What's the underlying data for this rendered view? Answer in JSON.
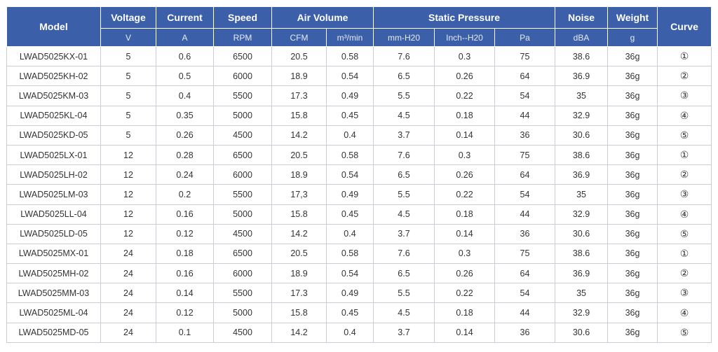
{
  "header": {
    "model": "Model",
    "voltage": "Voltage",
    "current": "Current",
    "speed": "Speed",
    "air_volume": "Air Volume",
    "static_pressure": "Static Pressure",
    "noise": "Noise",
    "weight": "Weight",
    "curve": "Curve",
    "units": [
      "V",
      "A",
      "RPM",
      "CFM",
      "m³/min",
      "mm-H20",
      "Inch--H20",
      "Pa",
      "dBA",
      "g"
    ]
  },
  "rows": [
    [
      "LWAD5025KX-01",
      "5",
      "0.6",
      "6500",
      "20.5",
      "0.58",
      "7.6",
      "0.3",
      "75",
      "38.6",
      "36g",
      "①"
    ],
    [
      "LWAD5025KH-02",
      "5",
      "0.5",
      "6000",
      "18.9",
      "0.54",
      "6.5",
      "0.26",
      "64",
      "36.9",
      "36g",
      "②"
    ],
    [
      "LWAD5025KM-03",
      "5",
      "0.4",
      "5500",
      "17.3",
      "0.49",
      "5.5",
      "0.22",
      "54",
      "35",
      "36g",
      "③"
    ],
    [
      "LWAD5025KL-04",
      "5",
      "0.35",
      "5000",
      "15.8",
      "0.45",
      "4.5",
      "0.18",
      "44",
      "32.9",
      "36g",
      "④"
    ],
    [
      "LWAD5025KD-05",
      "5",
      "0.26",
      "4500",
      "14.2",
      "0.4",
      "3.7",
      "0.14",
      "36",
      "30.6",
      "36g",
      "⑤"
    ],
    [
      "LWAD5025LX-01",
      "12",
      "0.28",
      "6500",
      "20.5",
      "0.58",
      "7.6",
      "0.3",
      "75",
      "38.6",
      "36g",
      "①"
    ],
    [
      "LWAD5025LH-02",
      "12",
      "0.24",
      "6000",
      "18.9",
      "0.54",
      "6.5",
      "0.26",
      "64",
      "36.9",
      "36g",
      "②"
    ],
    [
      "LWAD5025LM-03",
      "12",
      "0.2",
      "5500",
      "17,3",
      "0.49",
      "5.5",
      "0.22",
      "54",
      "35",
      "36g",
      "③"
    ],
    [
      "LWAD5025LL-04",
      "12",
      "0.16",
      "5000",
      "15.8",
      "0.45",
      "4.5",
      "0.18",
      "44",
      "32.9",
      "36g",
      "④"
    ],
    [
      "LWAD5025LD-05",
      "12",
      "0.12",
      "4500",
      "14.2",
      "0.4",
      "3.7",
      "0.14",
      "36",
      "30.6",
      "36g",
      "⑤"
    ],
    [
      "LWAD5025MX-01",
      "24",
      "0.18",
      "6500",
      "20.5",
      "0.58",
      "7.6",
      "0.3",
      "75",
      "38.6",
      "36g",
      "①"
    ],
    [
      "LWAD5025MH-02",
      "24",
      "0.16",
      "6000",
      "18.9",
      "0.54",
      "6.5",
      "0.26",
      "64",
      "36.9",
      "36g",
      "②"
    ],
    [
      "LWAD5025MM-03",
      "24",
      "0.14",
      "5500",
      "17.3",
      "0.49",
      "5.5",
      "0.22",
      "54",
      "35",
      "36g",
      "③"
    ],
    [
      "LWAD5025ML-04",
      "24",
      "0.12",
      "5000",
      "15.8",
      "0.45",
      "4.5",
      "0.18",
      "44",
      "32.9",
      "36g",
      "④"
    ],
    [
      "LWAD5025MD-05",
      "24",
      "0.1",
      "4500",
      "14.2",
      "0.4",
      "3.7",
      "0.14",
      "36",
      "30.6",
      "36g",
      "⑤"
    ]
  ],
  "colors": {
    "header_bg": "#3b5fa8",
    "header_text": "#ffffff",
    "border": "#c9cdd6",
    "cell_text": "#333333"
  }
}
